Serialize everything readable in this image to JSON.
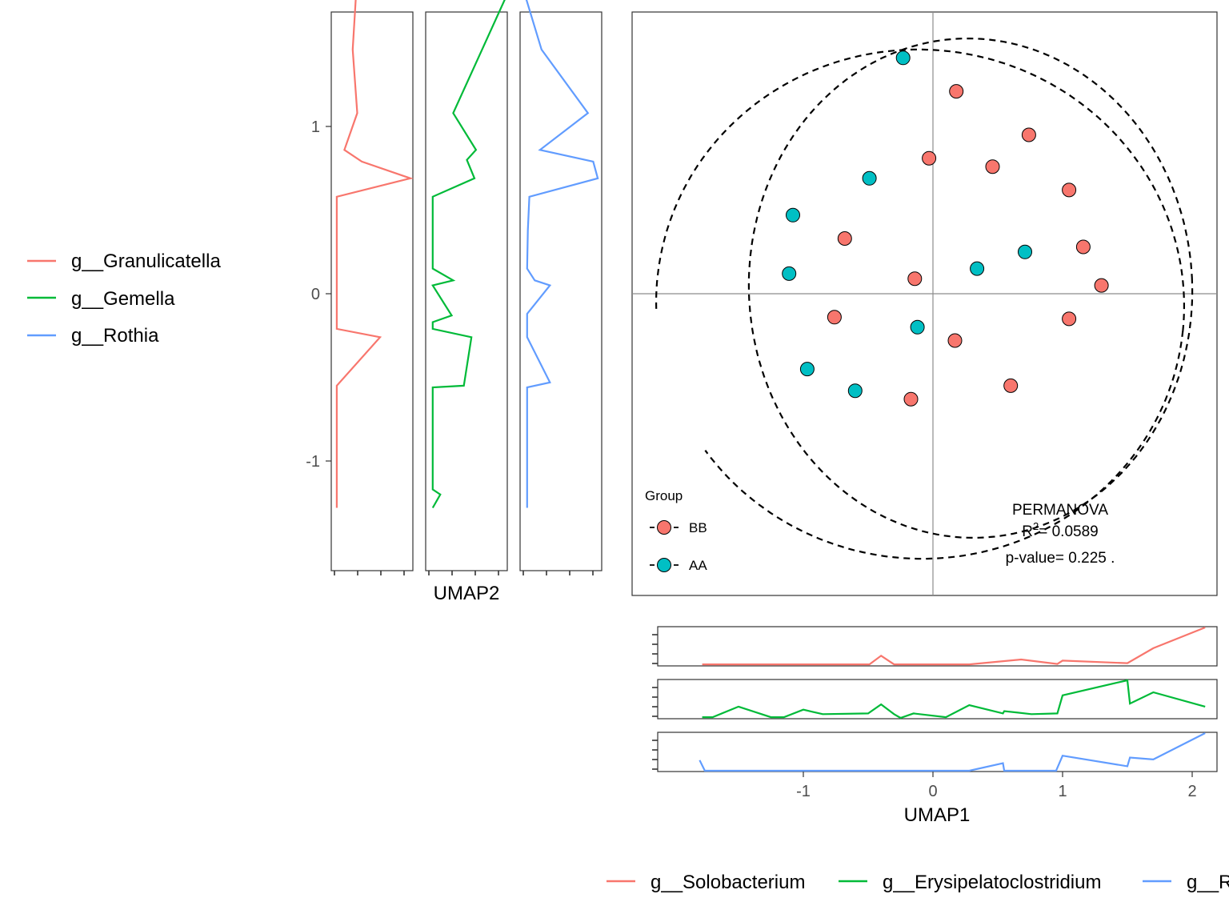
{
  "chart_data": [
    {
      "type": "scatter",
      "xlabel": "UMAP1",
      "ylabel": "UMAP2",
      "xlim": [
        -1.85,
        2.3
      ],
      "ylim": [
        -1.45,
        1.9
      ],
      "reference_lines": {
        "x": 0,
        "y": 0
      },
      "legend": {
        "title": "Group",
        "placement": "bottom-left"
      },
      "series": [
        {
          "name": "BB",
          "color": "#F8766D",
          "points": [
            {
              "x": 0.18,
              "y": 1.21
            },
            {
              "x": 0.74,
              "y": 0.95
            },
            {
              "x": -0.03,
              "y": 0.81
            },
            {
              "x": 0.46,
              "y": 0.76
            },
            {
              "x": 1.05,
              "y": 0.62
            },
            {
              "x": -0.68,
              "y": 0.33
            },
            {
              "x": 1.16,
              "y": 0.28
            },
            {
              "x": -0.14,
              "y": 0.09
            },
            {
              "x": 1.3,
              "y": 0.05
            },
            {
              "x": -0.76,
              "y": -0.14
            },
            {
              "x": 1.05,
              "y": -0.15
            },
            {
              "x": 0.17,
              "y": -0.28
            },
            {
              "x": 0.6,
              "y": -0.55
            },
            {
              "x": -0.17,
              "y": -0.63
            }
          ]
        },
        {
          "name": "AA",
          "color": "#00BFC4",
          "points": [
            {
              "x": -0.23,
              "y": 1.41
            },
            {
              "x": -0.49,
              "y": 0.69
            },
            {
              "x": -1.08,
              "y": 0.47
            },
            {
              "x": 0.71,
              "y": 0.25
            },
            {
              "x": 0.34,
              "y": 0.15
            },
            {
              "x": -1.11,
              "y": 0.12
            },
            {
              "x": -0.12,
              "y": -0.2
            },
            {
              "x": -0.97,
              "y": -0.45
            },
            {
              "x": -0.6,
              "y": -0.58
            }
          ]
        }
      ],
      "annotation": {
        "line1": "PERMANOVA",
        "r2_prefix": "R",
        "r2_sup": "2",
        "r2_value": "= 0.0589",
        "pvalue": "p-value= 0.225 ."
      }
    },
    {
      "type": "line",
      "description_axis": "UMAP2 marginal panels (vertical)",
      "xlabel": "UMAP2",
      "y_ticks": [
        "1",
        "0",
        "-1"
      ],
      "y_tick_values": [
        1,
        0,
        -1
      ],
      "ylim": [
        -1.45,
        1.9
      ],
      "series": [
        {
          "name": "g__Granulicatella",
          "color": "#F8766D",
          "y": [
            1.76,
            1.46,
            1.08,
            0.86,
            0.79,
            0.69,
            0.58,
            -0.21,
            -0.26,
            -0.55,
            -1.28
          ],
          "v": [
            0.28,
            0.24,
            0.3,
            0.13,
            0.36,
            1.0,
            0.03,
            0.03,
            0.6,
            0.03,
            0.03
          ]
        },
        {
          "name": "g__Gemella",
          "color": "#00BA38",
          "y": [
            1.76,
            1.46,
            1.08,
            0.86,
            0.8,
            0.69,
            0.58,
            0.15,
            0.08,
            0.05,
            -0.13,
            -0.17,
            -0.21,
            -0.26,
            -0.55,
            -0.56,
            -1.17,
            -1.2,
            -1.28
          ],
          "v": [
            1.0,
            0.7,
            0.32,
            0.62,
            0.5,
            0.6,
            0.05,
            0.05,
            0.32,
            0.05,
            0.3,
            0.05,
            0.05,
            0.56,
            0.46,
            0.05,
            0.05,
            0.15,
            0.05
          ]
        },
        {
          "name": "g__Rothia",
          "color": "#619CFF",
          "y": [
            1.76,
            1.46,
            1.08,
            0.86,
            0.79,
            0.69,
            0.58,
            0.38,
            0.15,
            0.08,
            0.05,
            -0.12,
            -0.26,
            -0.53,
            -0.56,
            -1.28
          ],
          "v": [
            0.04,
            0.24,
            0.85,
            0.22,
            0.92,
            0.98,
            0.08,
            0.06,
            0.05,
            0.15,
            0.35,
            0.05,
            0.05,
            0.35,
            0.05,
            0.05
          ]
        }
      ]
    },
    {
      "type": "line",
      "description_axis": "UMAP1 marginal panels (horizontal)",
      "x_ticks": [
        "-1",
        "0",
        "1",
        "2"
      ],
      "x_tick_values": [
        -1,
        0,
        1,
        2
      ],
      "xlim": [
        -1.85,
        2.3
      ],
      "series": [
        {
          "name": "g__Solobacterium",
          "color": "#F8766D",
          "x": [
            -1.78,
            -0.49,
            -0.4,
            -0.3,
            0.28,
            0.68,
            0.96,
            1.0,
            1.5,
            1.7,
            2.1
          ],
          "v": [
            0.02,
            0.02,
            0.25,
            0.02,
            0.02,
            0.15,
            0.03,
            0.12,
            0.05,
            0.45,
            1.0
          ]
        },
        {
          "name": "g__Erysipelatoclostridium",
          "color": "#00BA38",
          "x": [
            -1.78,
            -1.7,
            -1.5,
            -1.25,
            -1.15,
            -1.0,
            -0.85,
            -0.5,
            -0.4,
            -0.3,
            -0.25,
            -0.15,
            0.1,
            0.28,
            0.54,
            0.55,
            0.76,
            0.96,
            1.0,
            1.5,
            1.52,
            1.7,
            2.1
          ],
          "v": [
            0.02,
            0.02,
            0.3,
            0.02,
            0.02,
            0.22,
            0.1,
            0.12,
            0.36,
            0.1,
            0.0,
            0.12,
            0.02,
            0.34,
            0.12,
            0.18,
            0.1,
            0.12,
            0.6,
            1.0,
            0.38,
            0.68,
            0.3
          ]
        },
        {
          "name": "g__Rothia",
          "color": "#619CFF",
          "x": [
            -1.8,
            -1.76,
            0.28,
            0.54,
            0.55,
            0.95,
            1.0,
            1.5,
            1.52,
            1.7,
            2.1
          ],
          "v": [
            0.28,
            0.0,
            0.0,
            0.2,
            0.0,
            0.0,
            0.4,
            0.12,
            0.35,
            0.3,
            1.0
          ]
        }
      ]
    }
  ],
  "legend_left": {
    "items": [
      {
        "label": "g__Granulicatella",
        "color": "#F8766D"
      },
      {
        "label": "g__Gemella",
        "color": "#00BA38"
      },
      {
        "label": "g__Rothia",
        "color": "#619CFF"
      }
    ]
  },
  "legend_bottom": {
    "items": [
      {
        "label": "g__Solobacterium",
        "color": "#F8766D"
      },
      {
        "label": "g__Erysipelatoclostridium",
        "color": "#00BA38"
      },
      {
        "label": "g__R",
        "color": "#619CFF"
      }
    ]
  },
  "group_legend": {
    "title": "Group",
    "items": [
      {
        "label": "BB",
        "color": "#F8766D"
      },
      {
        "label": "AA",
        "color": "#00BFC4"
      }
    ]
  },
  "axis_titles": {
    "umap1": "UMAP1",
    "umap2": "UMAP2"
  }
}
